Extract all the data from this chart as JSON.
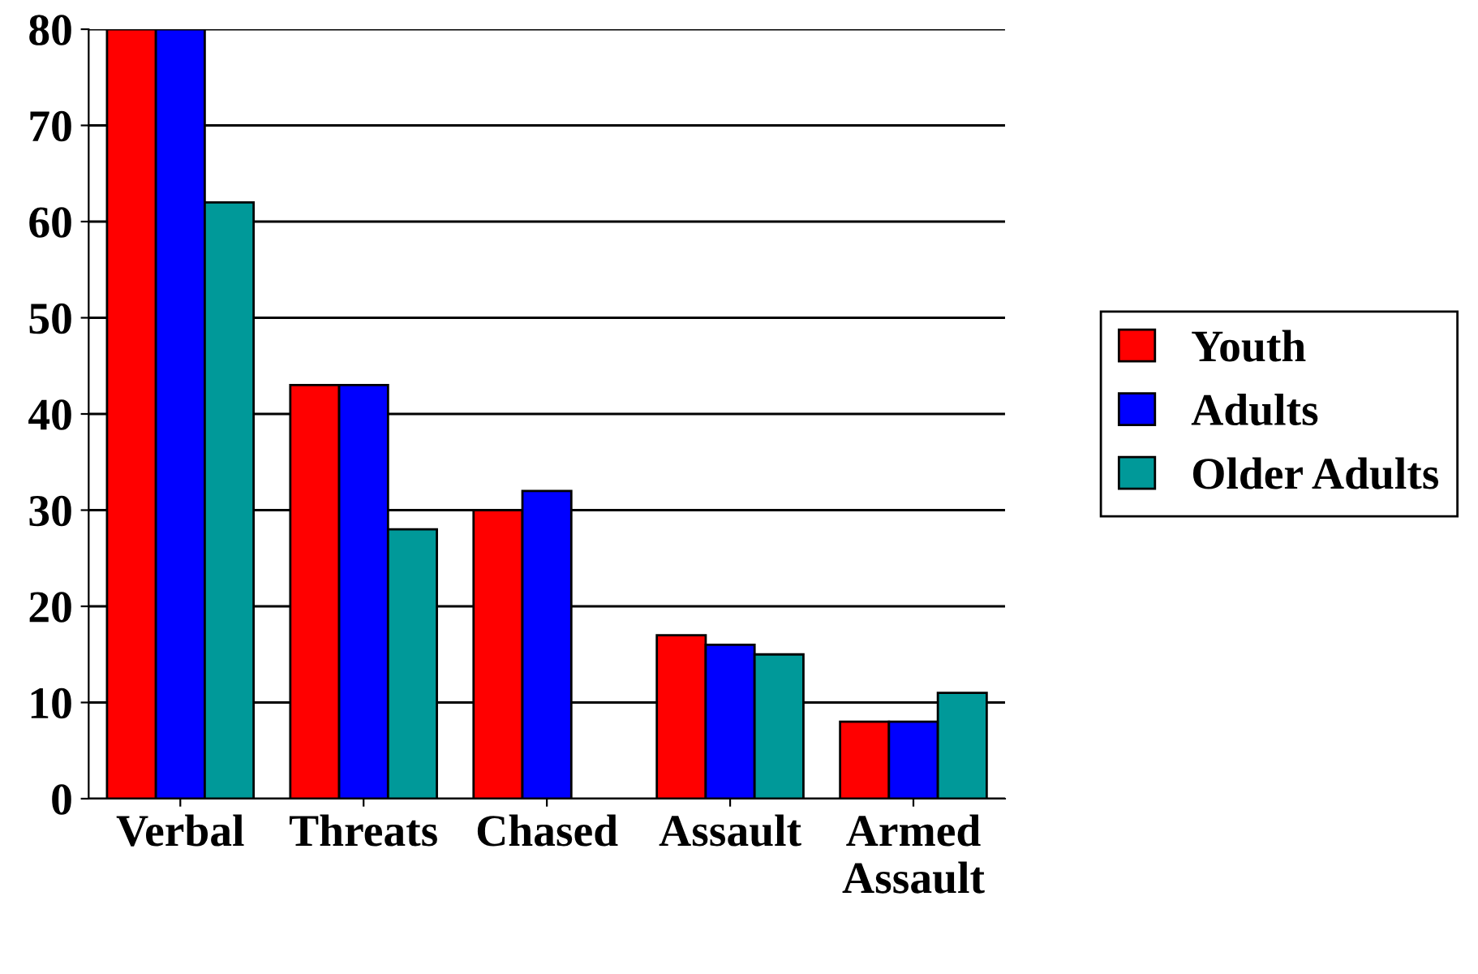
{
  "chart_data": {
    "type": "bar",
    "categories": [
      "Verbal",
      "Threats",
      "Chased",
      "Assault",
      "Armed\nAssault"
    ],
    "series": [
      {
        "name": "Youth",
        "color": "#ff0000",
        "values": [
          80,
          43,
          30,
          17,
          8
        ]
      },
      {
        "name": "Adults",
        "color": "#0000ff",
        "values": [
          80,
          43,
          32,
          16,
          8
        ]
      },
      {
        "name": "Older Adults",
        "color": "#009999",
        "values": [
          62,
          28,
          null,
          15,
          11
        ]
      }
    ],
    "ylim": [
      0,
      80
    ],
    "yticks": [
      0,
      10,
      20,
      30,
      40,
      50,
      60,
      70,
      80
    ],
    "grid": "y",
    "legend": "right"
  }
}
